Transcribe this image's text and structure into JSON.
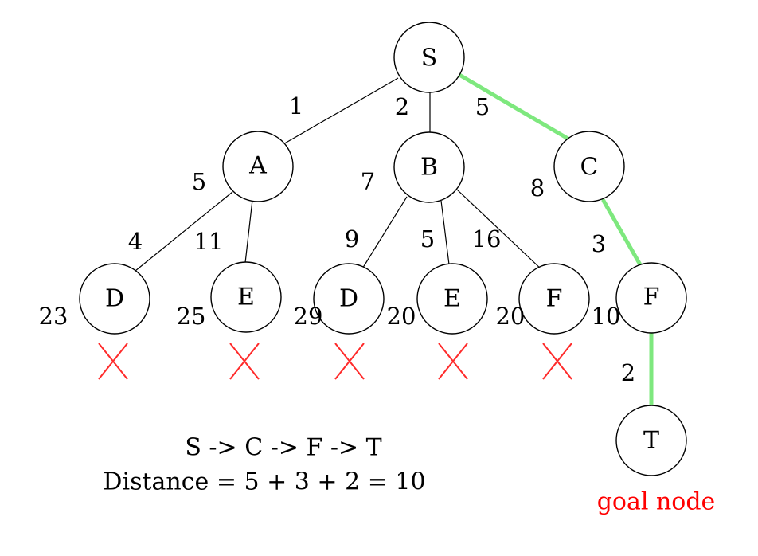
{
  "nodes": {
    "S": "S",
    "A": "A",
    "B": "B",
    "C": "C",
    "D1": "D",
    "E1": "E",
    "D2": "D",
    "E2": "E",
    "F1": "F",
    "F2": "F",
    "T": "T"
  },
  "edge_costs": {
    "S_A": "1",
    "S_B": "2",
    "S_C": "5",
    "A_D": "4",
    "A_E": "11",
    "B_D": "9",
    "B_E": "5",
    "B_F": "16",
    "C_F": "3",
    "F_T": "2"
  },
  "path_costs": {
    "A": "5",
    "B": "7",
    "C": "8",
    "D1": "23",
    "E1": "25",
    "D2": "29",
    "E2": "20",
    "F1": "20",
    "F2": "10"
  },
  "goal_label": "goal node",
  "result": {
    "path": "S -> C -> F -> T",
    "distance": "Distance = 5 + 3 + 2 = 10"
  },
  "colors": {
    "highlight_path": "#7ee87e",
    "pruned_mark": "#ff2a2a",
    "goal_text": "#ff0000"
  }
}
